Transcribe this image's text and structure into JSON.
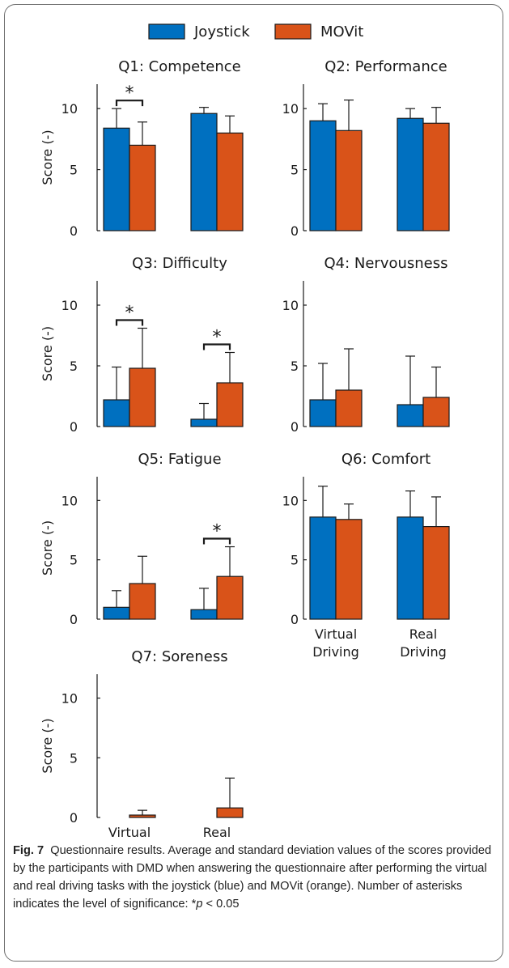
{
  "legend": [
    {
      "label": "Joystick",
      "color": "#0070c0"
    },
    {
      "label": "MOVit",
      "color": "#d95319"
    }
  ],
  "colors": {
    "joystick": "#0070c0",
    "movit": "#d95319"
  },
  "caption": {
    "fig_label": "Fig. 7",
    "text": "Questionnaire results. Average and standard deviation values of the scores provided by the participants with DMD when answering the questionnaire after performing the virtual and real driving tasks with the joystick (blue) and MOVit (orange). Number of asterisks indicates the level of significance: *",
    "sig_symbol": "p",
    "sig_rest": " < 0.05"
  },
  "chart_data": [
    {
      "type": "bar",
      "title": "Q1: Competence",
      "ylabel": "Score (-)",
      "ylim": [
        0,
        12
      ],
      "yticks": [
        0,
        5,
        10
      ],
      "categories": [
        "Virtual Driving",
        "Real Driving"
      ],
      "category_labels_shown": false,
      "series": [
        {
          "name": "Joystick",
          "values": [
            8.4,
            9.6
          ],
          "sd": [
            1.6,
            0.5
          ]
        },
        {
          "name": "MOVit",
          "values": [
            7.0,
            8.0
          ],
          "sd": [
            1.9,
            1.4
          ]
        }
      ],
      "significance": [
        {
          "category": 0,
          "label": "*"
        }
      ]
    },
    {
      "type": "bar",
      "title": "Q2: Performance",
      "ylabel": "",
      "ylim": [
        0,
        12
      ],
      "yticks": [
        0,
        5,
        10
      ],
      "categories": [
        "Virtual Driving",
        "Real Driving"
      ],
      "category_labels_shown": false,
      "series": [
        {
          "name": "Joystick",
          "values": [
            9.0,
            9.2
          ],
          "sd": [
            1.4,
            0.8
          ]
        },
        {
          "name": "MOVit",
          "values": [
            8.2,
            8.8
          ],
          "sd": [
            2.5,
            1.3
          ]
        }
      ],
      "significance": []
    },
    {
      "type": "bar",
      "title": "Q3: Difficulty",
      "ylabel": "Score (-)",
      "ylim": [
        0,
        12
      ],
      "yticks": [
        0,
        5,
        10
      ],
      "categories": [
        "Virtual Driving",
        "Real Driving"
      ],
      "category_labels_shown": false,
      "series": [
        {
          "name": "Joystick",
          "values": [
            2.2,
            0.6
          ],
          "sd": [
            2.7,
            1.3
          ]
        },
        {
          "name": "MOVit",
          "values": [
            4.8,
            3.6
          ],
          "sd": [
            3.3,
            2.5
          ]
        }
      ],
      "significance": [
        {
          "category": 0,
          "label": "*"
        },
        {
          "category": 1,
          "label": "*"
        }
      ]
    },
    {
      "type": "bar",
      "title": "Q4: Nervousness",
      "ylabel": "",
      "ylim": [
        0,
        12
      ],
      "yticks": [
        0,
        5,
        10
      ],
      "categories": [
        "Virtual Driving",
        "Real Driving"
      ],
      "category_labels_shown": false,
      "series": [
        {
          "name": "Joystick",
          "values": [
            2.2,
            1.8
          ],
          "sd": [
            3.0,
            4.0
          ]
        },
        {
          "name": "MOVit",
          "values": [
            3.0,
            2.4
          ],
          "sd": [
            3.4,
            2.5
          ]
        }
      ],
      "significance": []
    },
    {
      "type": "bar",
      "title": "Q5: Fatigue",
      "ylabel": "Score (-)",
      "ylim": [
        0,
        12
      ],
      "yticks": [
        0,
        5,
        10
      ],
      "categories": [
        "Virtual Driving",
        "Real Driving"
      ],
      "category_labels_shown": false,
      "series": [
        {
          "name": "Joystick",
          "values": [
            1.0,
            0.8
          ],
          "sd": [
            1.4,
            1.8
          ]
        },
        {
          "name": "MOVit",
          "values": [
            3.0,
            3.6
          ],
          "sd": [
            2.3,
            2.5
          ]
        }
      ],
      "significance": [
        {
          "category": 1,
          "label": "*"
        }
      ]
    },
    {
      "type": "bar",
      "title": "Q6: Comfort",
      "ylabel": "",
      "ylim": [
        0,
        12
      ],
      "yticks": [
        0,
        5,
        10
      ],
      "categories": [
        "Virtual Driving",
        "Real Driving"
      ],
      "category_labels_shown": true,
      "series": [
        {
          "name": "Joystick",
          "values": [
            8.6,
            8.6
          ],
          "sd": [
            2.6,
            2.2
          ]
        },
        {
          "name": "MOVit",
          "values": [
            8.4,
            7.8
          ],
          "sd": [
            1.3,
            2.5
          ]
        }
      ],
      "significance": []
    },
    {
      "type": "bar",
      "title": "Q7: Soreness",
      "ylabel": "Score (-)",
      "ylim": [
        0,
        12
      ],
      "yticks": [
        0,
        5,
        10
      ],
      "categories": [
        "Virtual Driving",
        "Real Driving"
      ],
      "category_labels_shown": true,
      "series": [
        {
          "name": "Joystick",
          "values": [
            0.0,
            0.0
          ],
          "sd": [
            0.0,
            0.0
          ]
        },
        {
          "name": "MOVit",
          "values": [
            0.2,
            0.8
          ],
          "sd": [
            0.4,
            2.5
          ]
        }
      ],
      "significance": []
    }
  ]
}
